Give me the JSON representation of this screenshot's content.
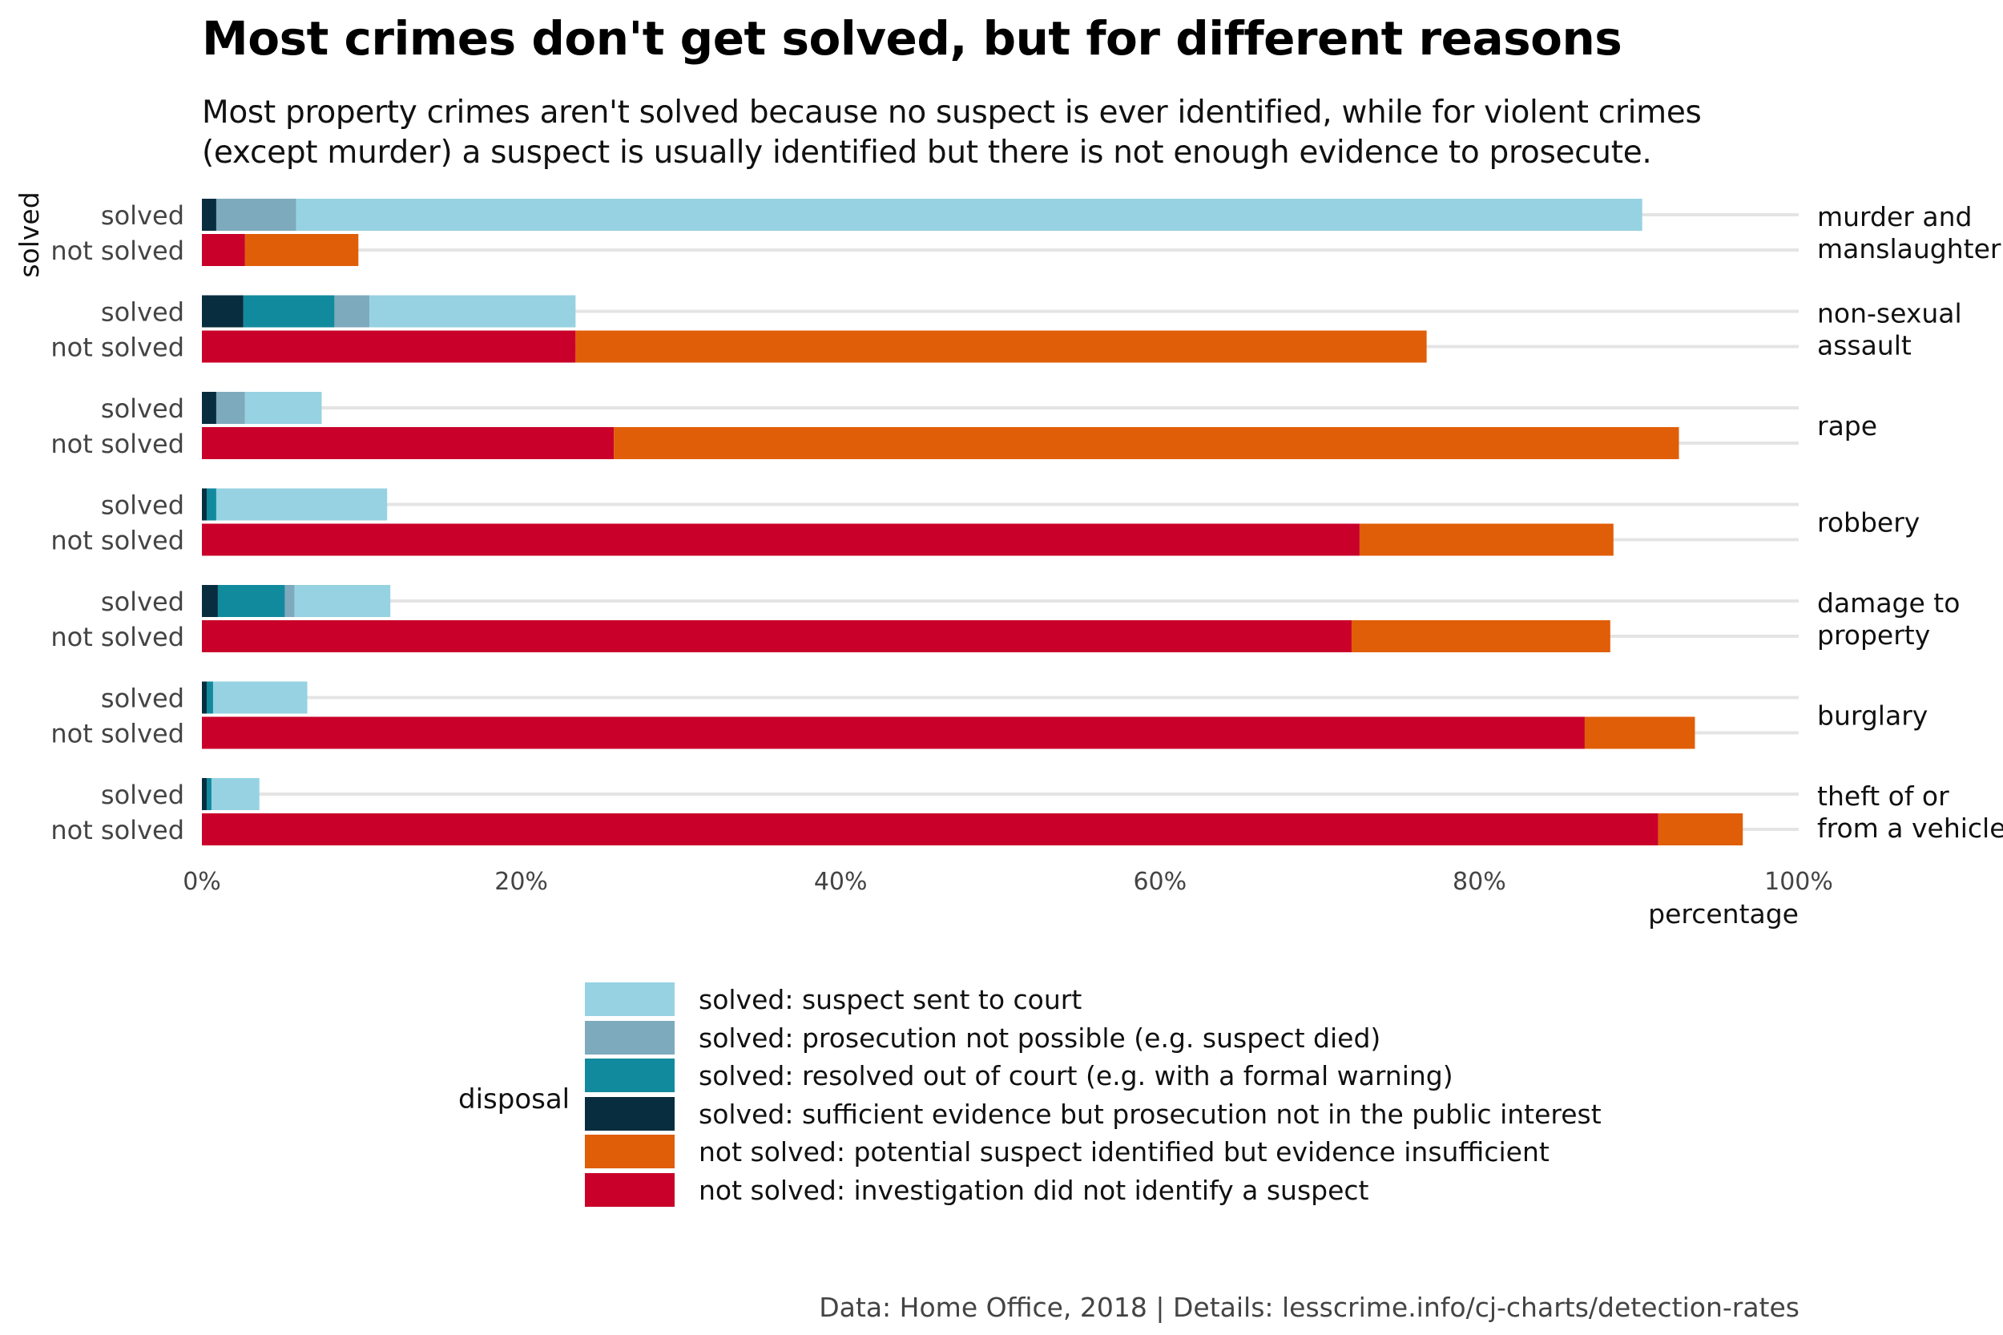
{
  "chart_data": {
    "type": "bar",
    "orientation": "horizontal",
    "stacked": true,
    "title": "Most crimes don't get solved, but for different reasons",
    "subtitle": [
      "Most property crimes aren't solved because no suspect is ever identified, while for violent crimes",
      "(except murder) a suspect is usually identified but there is not enough evidence to prosecute."
    ],
    "xlabel": "percentage",
    "ylabel": "solved",
    "xlim": [
      0,
      100
    ],
    "x_ticks": [
      "0%",
      "20%",
      "40%",
      "60%",
      "80%",
      "100%"
    ],
    "grid": true,
    "legend_placement": "bottom",
    "legend_title": "disposal",
    "caption": "Data: Home Office, 2018 |  Details: lesscrime.info/cj-charts/detection-rates",
    "row_labels": [
      "solved",
      "not solved"
    ],
    "series": [
      {
        "name": "solved: suspect sent to court",
        "color": "#96d2e2"
      },
      {
        "name": "solved: prosecution not possible (e.g. suspect died)",
        "color": "#7eaabd"
      },
      {
        "name": "solved: resolved out of court (e.g. with a formal warning)",
        "color": "#128a9e"
      },
      {
        "name": "solved: sufficient evidence but prosecution not in the public interest",
        "color": "#082d3e"
      },
      {
        "name": "not solved: potential suspect identified but evidence insufficient",
        "color": "#e05e08"
      },
      {
        "name": "not solved: investigation did not identify a suspect",
        "color": "#c9002a"
      }
    ],
    "crimes": [
      {
        "name": "murder and\nmanslaughter",
        "solved": [
          {
            "series": 3,
            "value": 0.9
          },
          {
            "series": 2,
            "value": 0.0
          },
          {
            "series": 1,
            "value": 5.0
          },
          {
            "series": 0,
            "value": 84.3
          }
        ],
        "not_solved": [
          {
            "series": 5,
            "value": 2.7
          },
          {
            "series": 4,
            "value": 7.1
          }
        ]
      },
      {
        "name": "non-sexual\nassault",
        "solved": [
          {
            "series": 3,
            "value": 2.6
          },
          {
            "series": 2,
            "value": 5.7
          },
          {
            "series": 1,
            "value": 2.2
          },
          {
            "series": 0,
            "value": 12.9
          }
        ],
        "not_solved": [
          {
            "series": 5,
            "value": 23.4
          },
          {
            "series": 4,
            "value": 53.3
          }
        ]
      },
      {
        "name": "rape",
        "solved": [
          {
            "series": 3,
            "value": 0.9
          },
          {
            "series": 2,
            "value": 0.0
          },
          {
            "series": 1,
            "value": 1.8
          },
          {
            "series": 0,
            "value": 4.8
          }
        ],
        "not_solved": [
          {
            "series": 5,
            "value": 25.8
          },
          {
            "series": 4,
            "value": 66.7
          }
        ]
      },
      {
        "name": "robbery",
        "solved": [
          {
            "series": 3,
            "value": 0.3
          },
          {
            "series": 2,
            "value": 0.6
          },
          {
            "series": 1,
            "value": 0.0
          },
          {
            "series": 0,
            "value": 10.7
          }
        ],
        "not_solved": [
          {
            "series": 5,
            "value": 72.5
          },
          {
            "series": 4,
            "value": 15.9
          }
        ]
      },
      {
        "name": "damage to\nproperty",
        "solved": [
          {
            "series": 3,
            "value": 1.0
          },
          {
            "series": 2,
            "value": 4.2
          },
          {
            "series": 1,
            "value": 0.6
          },
          {
            "series": 0,
            "value": 6.0
          }
        ],
        "not_solved": [
          {
            "series": 5,
            "value": 72.0
          },
          {
            "series": 4,
            "value": 16.2
          }
        ]
      },
      {
        "name": "burglary",
        "solved": [
          {
            "series": 3,
            "value": 0.3
          },
          {
            "series": 2,
            "value": 0.4
          },
          {
            "series": 1,
            "value": 0.0
          },
          {
            "series": 0,
            "value": 5.9
          }
        ],
        "not_solved": [
          {
            "series": 5,
            "value": 86.6
          },
          {
            "series": 4,
            "value": 6.9
          }
        ]
      },
      {
        "name": "theft of or\nfrom a vehicle",
        "solved": [
          {
            "series": 3,
            "value": 0.3
          },
          {
            "series": 2,
            "value": 0.3
          },
          {
            "series": 1,
            "value": 0.0
          },
          {
            "series": 0,
            "value": 3.0
          }
        ],
        "not_solved": [
          {
            "series": 5,
            "value": 91.2
          },
          {
            "series": 4,
            "value": 5.3
          }
        ]
      }
    ]
  }
}
